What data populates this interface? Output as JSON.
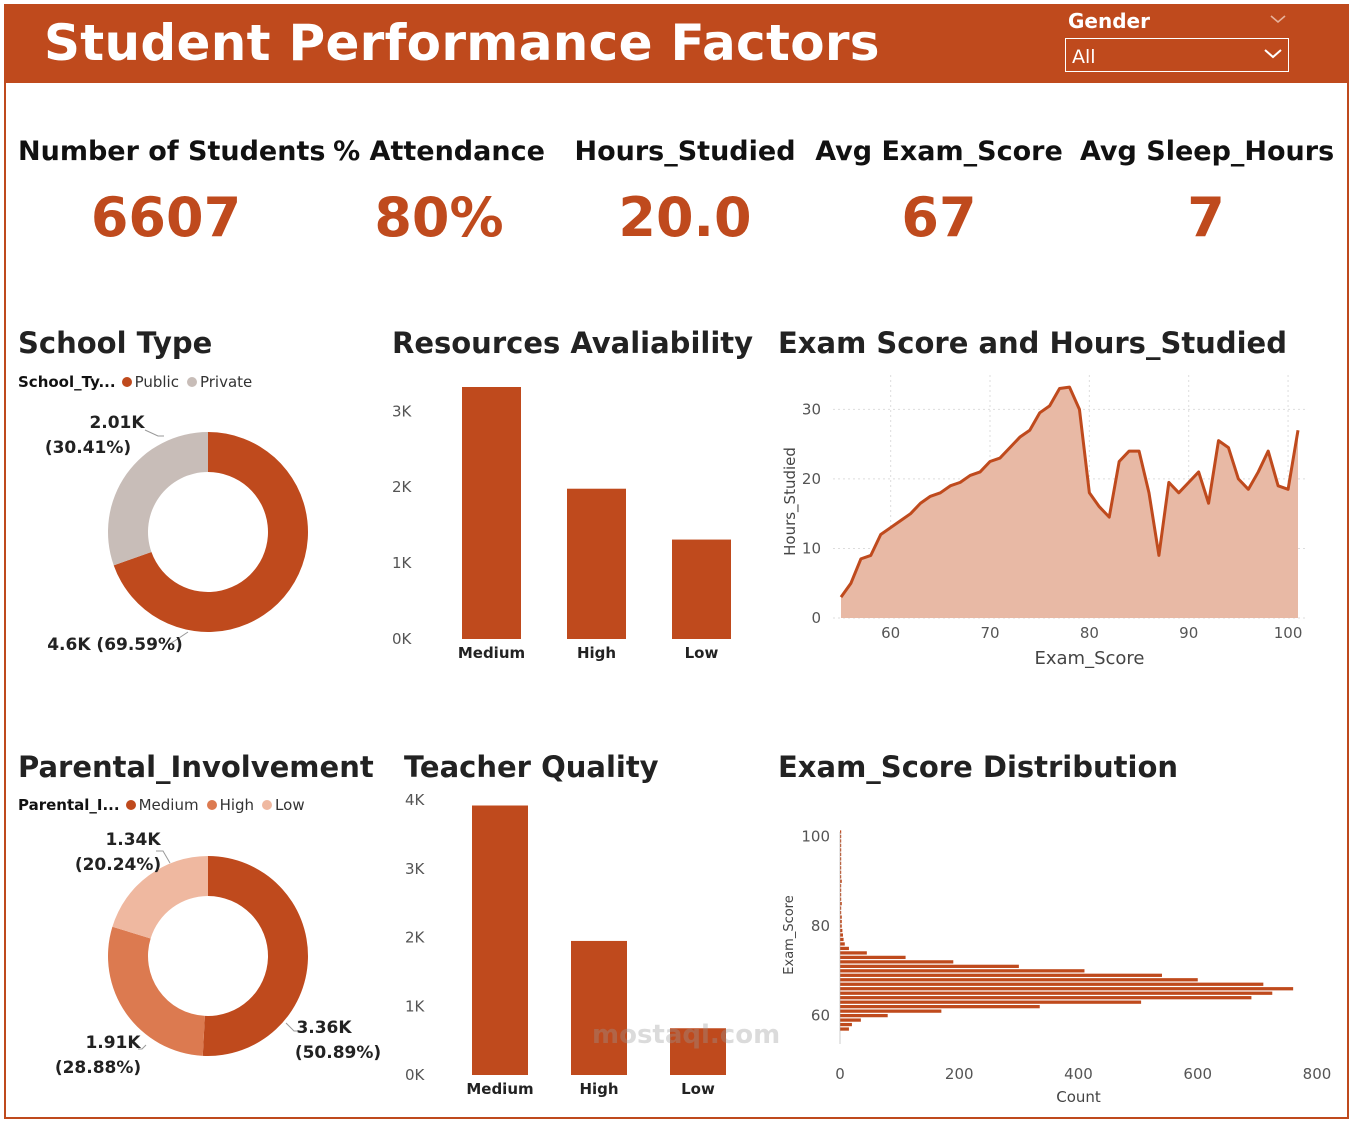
{
  "header": {
    "title": "Student Performance Factors"
  },
  "slicer": {
    "label": "Gender",
    "value": "All"
  },
  "kpis": [
    {
      "label": "Number of Students",
      "value": "6607"
    },
    {
      "label": "% Attendance",
      "value": "80%"
    },
    {
      "label": "Hours_Studied",
      "value": "20.0"
    },
    {
      "label": "Avg Exam_Score",
      "value": "67"
    },
    {
      "label": "Avg Sleep_Hours",
      "value": "7"
    }
  ],
  "colors": {
    "accent": "#bf4a1d",
    "private": "#c8bdb8",
    "medium": "#bf4a1d",
    "high": "#dc7a50",
    "low": "#efb8a0",
    "area_fill": "#e8b9a5"
  },
  "watermark": "mostaql.com",
  "school_type": {
    "title": "School Type",
    "legend_title": "School_Ty...",
    "legend": [
      "Public",
      "Private"
    ],
    "labels": {
      "private_value": "2.01K",
      "private_pct": "(30.41%)",
      "public": "4.6K (69.59%)"
    }
  },
  "parental": {
    "title": "Parental_Involvement",
    "legend_title": "Parental_I...",
    "legend": [
      "Medium",
      "High",
      "Low"
    ],
    "labels": {
      "low_value": "1.34K",
      "low_pct": "(20.24%)",
      "high_value": "1.91K",
      "high_pct": "(28.88%)",
      "medium_value": "3.36K",
      "medium_pct": "(50.89%)"
    }
  },
  "resources": {
    "title": "Resources Avaliability"
  },
  "teacher": {
    "title": "Teacher Quality"
  },
  "exam_hours": {
    "title": "Exam Score and Hours_Studied"
  },
  "dist": {
    "title": "Exam_Score Distribution"
  },
  "chart_data": [
    {
      "type": "pie",
      "title": "School Type",
      "donut": true,
      "legend_title": "School_Ty...",
      "slices": [
        {
          "name": "Public",
          "value": 4600,
          "percent": 69.59,
          "label": "4.6K (69.59%)"
        },
        {
          "name": "Private",
          "value": 2010,
          "percent": 30.41,
          "label": "2.01K (30.41%)"
        }
      ]
    },
    {
      "type": "bar",
      "title": "Resources Avaliability",
      "categories": [
        "Medium",
        "High",
        "Low"
      ],
      "values": [
        3320,
        1980,
        1310
      ],
      "yticks": [
        "0K",
        "1K",
        "2K",
        "3K"
      ],
      "ylim": [
        0,
        3320
      ]
    },
    {
      "type": "area",
      "title": "Exam Score and Hours_Studied",
      "xlabel": "Exam_Score",
      "ylabel": "Hours_Studied",
      "xticks": [
        60,
        70,
        80,
        90,
        100
      ],
      "yticks": [
        0,
        10,
        20,
        30
      ],
      "xlim": [
        55,
        101
      ],
      "ylim": [
        0,
        33.5
      ],
      "grid": true,
      "x": [
        55,
        56,
        57,
        58,
        59,
        60,
        61,
        62,
        63,
        64,
        65,
        66,
        67,
        68,
        69,
        70,
        71,
        72,
        73,
        74,
        75,
        76,
        77,
        78,
        79,
        80,
        81,
        82,
        83,
        84,
        85,
        86,
        87,
        88,
        89,
        90,
        91,
        92,
        93,
        94,
        95,
        96,
        97,
        98,
        99,
        100,
        101
      ],
      "y": [
        3,
        5,
        8.5,
        9,
        12,
        13,
        14,
        15,
        16.5,
        17.5,
        18,
        19,
        19.5,
        20.5,
        21,
        22.5,
        23,
        24.5,
        26,
        27,
        29.5,
        30.5,
        33,
        33.2,
        30,
        18,
        16,
        14.5,
        22.5,
        24,
        24,
        18,
        9,
        19.5,
        18,
        19.5,
        21,
        16.5,
        25.5,
        24.5,
        20,
        18.5,
        21,
        24,
        19,
        18.5,
        27
      ]
    },
    {
      "type": "pie",
      "title": "Parental_Involvement",
      "donut": true,
      "legend_title": "Parental_I...",
      "slices": [
        {
          "name": "Medium",
          "value": 3360,
          "percent": 50.89,
          "label": "3.36K (50.89%)"
        },
        {
          "name": "High",
          "value": 1910,
          "percent": 28.88,
          "label": "1.91K (28.88%)"
        },
        {
          "name": "Low",
          "value": 1340,
          "percent": 20.24,
          "label": "1.34K (20.24%)"
        }
      ]
    },
    {
      "type": "bar",
      "title": "Teacher Quality",
      "categories": [
        "Medium",
        "High",
        "Low"
      ],
      "values": [
        3920,
        1950,
        680
      ],
      "yticks": [
        "0K",
        "1K",
        "2K",
        "3K",
        "4K"
      ],
      "ylim": [
        0,
        4000
      ]
    },
    {
      "type": "bar",
      "orientation": "horizontal",
      "title": "Exam_Score Distribution",
      "xlabel": "Count",
      "ylabel": "Exam_Score",
      "xticks": [
        0,
        200,
        400,
        600,
        800
      ],
      "yticks": [
        60,
        80,
        100
      ],
      "xlim": [
        0,
        800
      ],
      "ylim": [
        55,
        101
      ],
      "scores": [
        57,
        58,
        59,
        60,
        61,
        62,
        63,
        64,
        65,
        66,
        67,
        68,
        69,
        70,
        71,
        72,
        73,
        74,
        75,
        76,
        77,
        78,
        79,
        80,
        81,
        82,
        83,
        84,
        85,
        86,
        87,
        88,
        89,
        90,
        91,
        92,
        93,
        94,
        95,
        96,
        97,
        98,
        99,
        100,
        101
      ],
      "counts": [
        15,
        20,
        35,
        80,
        170,
        335,
        505,
        690,
        725,
        760,
        710,
        600,
        540,
        410,
        300,
        190,
        110,
        45,
        15,
        8,
        6,
        5,
        4,
        3,
        3,
        3,
        2,
        2,
        3,
        2,
        2,
        2,
        2,
        3,
        2,
        2,
        2,
        2,
        2,
        2,
        2,
        2,
        2,
        2,
        2
      ]
    }
  ]
}
